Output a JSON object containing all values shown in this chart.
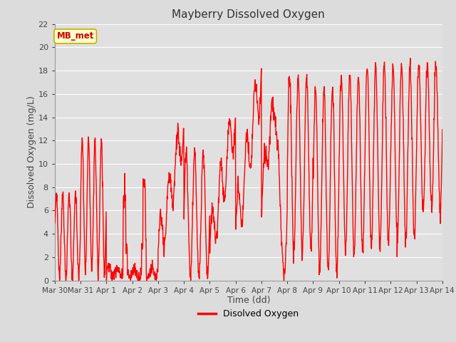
{
  "title": "Mayberry Dissolved Oxygen",
  "xlabel": "Time (dd)",
  "ylabel": "Dissolved Oxygen (mg/L)",
  "legend_label": "Disolved Oxygen",
  "line_color": "#FF0000",
  "line_width": 1.0,
  "ylim": [
    0,
    22
  ],
  "yticks": [
    0,
    2,
    4,
    6,
    8,
    10,
    12,
    14,
    16,
    18,
    20,
    22
  ],
  "xtick_labels": [
    "Mar 30",
    "Mar 31",
    "Apr 1",
    "Apr 2",
    "Apr 3",
    "Apr 4",
    "Apr 5",
    "Apr 6",
    "Apr 7",
    "Apr 8",
    "Apr 9",
    "Apr 10",
    "Apr 11",
    "Apr 12",
    "Apr 13",
    "Apr 14"
  ],
  "fig_bg_color": "#DCDCDC",
  "plot_bg_color": "#E0E0E0",
  "grid_color": "#FFFFFF",
  "annotation_text": "MB_met",
  "annotation_color": "#CC0000",
  "annotation_bg": "#FFFFCC",
  "annotation_border": "#CCAA00",
  "title_fontsize": 11,
  "label_fontsize": 9,
  "tick_fontsize": 8,
  "legend_fontsize": 9
}
